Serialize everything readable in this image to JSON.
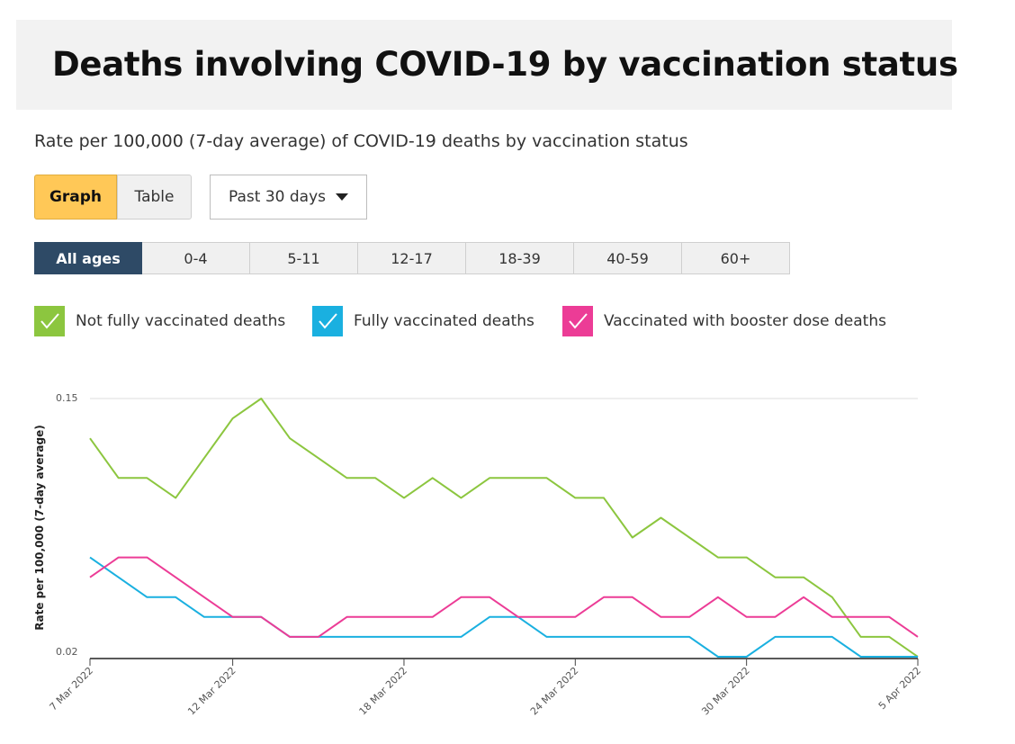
{
  "header": {
    "title": "Deaths involving COVID-19 by vaccination status"
  },
  "subtitle": "Rate per 100,000 (7-day average) of COVID-19 deaths by vaccination status",
  "view_toggle": {
    "graph_label": "Graph",
    "table_label": "Table",
    "selected": "Graph"
  },
  "period_select": {
    "value": "Past 30 days"
  },
  "age_tabs": [
    {
      "label": "All ages",
      "active": true
    },
    {
      "label": "0-4",
      "active": false
    },
    {
      "label": "5-11",
      "active": false
    },
    {
      "label": "12-17",
      "active": false
    },
    {
      "label": "18-39",
      "active": false
    },
    {
      "label": "40-59",
      "active": false
    },
    {
      "label": "60+",
      "active": false
    }
  ],
  "legend": [
    {
      "label": "Not fully vaccinated deaths",
      "color": "#8cc63f",
      "checked": true
    },
    {
      "label": "Fully vaccinated deaths",
      "color": "#1ab0e0",
      "checked": true
    },
    {
      "label": "Vaccinated with booster dose deaths",
      "color": "#ec3c96",
      "checked": true
    }
  ],
  "chart_data": {
    "type": "line",
    "title": "",
    "xlabel": "",
    "ylabel": "Rate per 100,000 (7-day average)",
    "ylim": [
      0.02,
      0.15
    ],
    "yticks": [
      "0.02",
      "0.15"
    ],
    "xticks": [
      "7 Mar 2022",
      "12 Mar 2022",
      "18 Mar 2022",
      "24 Mar 2022",
      "30 Mar 2022",
      "5 Apr 2022"
    ],
    "x": [
      "7 Mar 2022",
      "8 Mar 2022",
      "9 Mar 2022",
      "10 Mar 2022",
      "11 Mar 2022",
      "12 Mar 2022",
      "13 Mar 2022",
      "14 Mar 2022",
      "15 Mar 2022",
      "16 Mar 2022",
      "17 Mar 2022",
      "18 Mar 2022",
      "19 Mar 2022",
      "20 Mar 2022",
      "21 Mar 2022",
      "22 Mar 2022",
      "23 Mar 2022",
      "24 Mar 2022",
      "25 Mar 2022",
      "26 Mar 2022",
      "27 Mar 2022",
      "28 Mar 2022",
      "29 Mar 2022",
      "30 Mar 2022",
      "31 Mar 2022",
      "1 Apr 2022",
      "2 Apr 2022",
      "3 Apr 2022",
      "4 Apr 2022",
      "5 Apr 2022"
    ],
    "grid": true,
    "series": [
      {
        "name": "Not fully vaccinated deaths",
        "color": "#8cc63f",
        "values": [
          0.13,
          0.11,
          0.11,
          0.1,
          0.12,
          0.14,
          0.15,
          0.13,
          0.12,
          0.11,
          0.11,
          0.1,
          0.11,
          0.1,
          0.11,
          0.11,
          0.11,
          0.1,
          0.1,
          0.08,
          0.09,
          0.08,
          0.07,
          0.07,
          0.06,
          0.06,
          0.05,
          0.03,
          0.03,
          0.02
        ]
      },
      {
        "name": "Fully vaccinated deaths",
        "color": "#1ab0e0",
        "values": [
          0.07,
          0.06,
          0.05,
          0.05,
          0.04,
          0.04,
          0.04,
          0.03,
          0.03,
          0.03,
          0.03,
          0.03,
          0.03,
          0.03,
          0.04,
          0.04,
          0.03,
          0.03,
          0.03,
          0.03,
          0.03,
          0.03,
          0.02,
          0.02,
          0.03,
          0.03,
          0.03,
          0.02,
          0.02,
          0.02
        ]
      },
      {
        "name": "Vaccinated with booster dose deaths",
        "color": "#ec3c96",
        "values": [
          0.06,
          0.07,
          0.07,
          0.06,
          0.05,
          0.04,
          0.04,
          0.03,
          0.03,
          0.04,
          0.04,
          0.04,
          0.04,
          0.05,
          0.05,
          0.04,
          0.04,
          0.04,
          0.05,
          0.05,
          0.04,
          0.04,
          0.05,
          0.04,
          0.04,
          0.05,
          0.04,
          0.04,
          0.04,
          0.03
        ]
      }
    ]
  }
}
